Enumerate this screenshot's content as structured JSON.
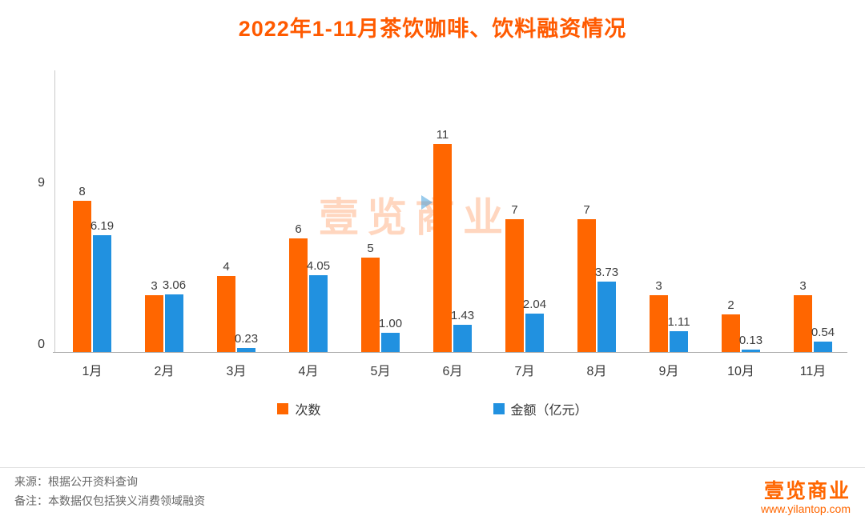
{
  "title": "2022年1-11月茶饮咖啡、饮料融资情况",
  "chart_data": {
    "type": "bar",
    "categories": [
      "1月",
      "2月",
      "3月",
      "4月",
      "5月",
      "6月",
      "7月",
      "8月",
      "9月",
      "10月",
      "11月"
    ],
    "series": [
      {
        "name": "次数",
        "color": "#ff6600",
        "values": [
          8,
          3,
          4,
          6,
          5,
          11,
          7,
          7,
          3,
          2,
          3
        ],
        "labels": [
          "8",
          "3",
          "4",
          "6",
          "5",
          "11",
          "7",
          "7",
          "3",
          "2",
          "3"
        ]
      },
      {
        "name": "金额（亿元）",
        "color": "#2191e0",
        "values": [
          6.19,
          3.06,
          0.23,
          4.05,
          1.0,
          1.43,
          2.04,
          3.73,
          1.11,
          0.13,
          0.54
        ],
        "labels": [
          "6.19",
          "3.06",
          "0.23",
          "4.05",
          "1.00",
          "1.43",
          "2.04",
          "3.73",
          "1.11",
          "0.13",
          "0.54"
        ]
      }
    ],
    "title": "2022年1-11月茶饮咖啡、饮料融资情况",
    "xlabel": "",
    "ylabel": "",
    "yticks": [
      0,
      9
    ],
    "ylim": [
      0,
      14.8
    ],
    "grid": false,
    "legend_position": "bottom"
  },
  "watermark": {
    "text": "壹览商业"
  },
  "footer": {
    "source": "来源：根据公开资料查询",
    "note": "备注：本数据仅包括狭义消费领域融资",
    "brand": "壹览商业",
    "website": "www.yilantop.com"
  },
  "colors": {
    "title": "#ff5a00",
    "count_bar": "#ff6600",
    "amount_bar": "#2191e0"
  }
}
